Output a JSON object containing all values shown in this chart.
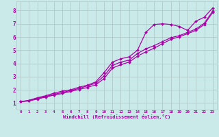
{
  "background_color": "#caeaea",
  "grid_color": "#b0c8c8",
  "line_color": "#aa00aa",
  "xlim": [
    -0.5,
    23.5
  ],
  "ylim": [
    0.5,
    8.7
  ],
  "xlabel": "Windchill (Refroidissement éolien,°C)",
  "xticks": [
    0,
    1,
    2,
    3,
    4,
    5,
    6,
    7,
    8,
    9,
    10,
    11,
    12,
    13,
    14,
    15,
    16,
    17,
    18,
    19,
    20,
    21,
    22,
    23
  ],
  "yticks": [
    1,
    2,
    3,
    4,
    5,
    6,
    7,
    8
  ],
  "series": [
    {
      "x": [
        0,
        1,
        2,
        3,
        4,
        5,
        6,
        7,
        8,
        9,
        10,
        11,
        12,
        13,
        14,
        15,
        16,
        17,
        18,
        19,
        20,
        21,
        22,
        23
      ],
      "y": [
        1.1,
        1.2,
        1.4,
        1.55,
        1.75,
        1.9,
        2.0,
        2.2,
        2.35,
        2.6,
        3.3,
        4.1,
        4.35,
        4.5,
        5.0,
        6.35,
        6.95,
        7.0,
        6.95,
        6.8,
        6.5,
        7.2,
        7.5,
        8.2
      ]
    },
    {
      "x": [
        0,
        1,
        2,
        3,
        4,
        5,
        6,
        7,
        8,
        9,
        10,
        11,
        12,
        13,
        14,
        15,
        16,
        17,
        18,
        19,
        20,
        21,
        22,
        23
      ],
      "y": [
        1.1,
        1.2,
        1.35,
        1.5,
        1.65,
        1.8,
        1.95,
        2.1,
        2.3,
        2.5,
        3.05,
        3.85,
        4.1,
        4.25,
        4.75,
        5.1,
        5.35,
        5.65,
        5.95,
        6.1,
        6.35,
        6.6,
        7.05,
        7.95
      ]
    },
    {
      "x": [
        0,
        1,
        2,
        3,
        4,
        5,
        6,
        7,
        8,
        9,
        10,
        11,
        12,
        13,
        14,
        15,
        16,
        17,
        18,
        19,
        20,
        21,
        22,
        23
      ],
      "y": [
        1.1,
        1.15,
        1.3,
        1.45,
        1.6,
        1.72,
        1.88,
        2.02,
        2.18,
        2.38,
        2.85,
        3.65,
        3.9,
        4.1,
        4.55,
        4.88,
        5.15,
        5.5,
        5.82,
        6.02,
        6.25,
        6.5,
        6.95,
        7.85
      ]
    }
  ]
}
